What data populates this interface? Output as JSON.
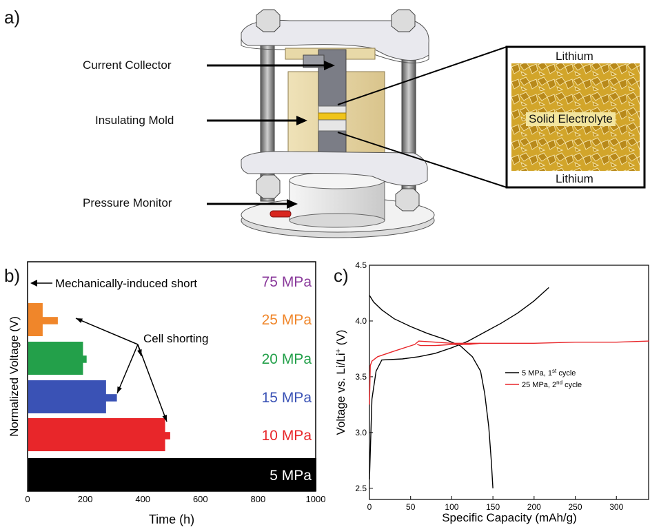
{
  "panel_labels": {
    "a": "a)",
    "b": "b)",
    "c": "c)"
  },
  "panel_a": {
    "callouts": {
      "current_collector": "Current Collector",
      "insulating_mold": "Insulating Mold",
      "pressure_monitor": "Pressure Monitor"
    },
    "inset": {
      "top_label": "Lithium",
      "middle_label": "Solid Electrolyte",
      "bottom_label": "Lithium"
    }
  },
  "panel_b": {
    "annotations": {
      "short": "Mechanically-induced short",
      "shorting": "Cell shorting"
    }
  },
  "colors": {
    "p5": "#000000",
    "p10": "#e8262a",
    "p15": "#3a52b5",
    "p20": "#23a04a",
    "p25": "#f0862a",
    "p75": "#8a3a9b"
  },
  "chart_data": [
    {
      "type": "bar",
      "xlabel": "Time (h)",
      "ylabel": "Normalized Voltage (V)",
      "xlim": [
        0,
        1000
      ],
      "xticks": [
        0,
        200,
        400,
        600,
        800,
        1000
      ],
      "series": [
        {
          "name": "75 MPa",
          "short_time": 0,
          "color": "#8a3a9b"
        },
        {
          "name": "25 MPa",
          "short_time": 50,
          "spike_to": 105,
          "color": "#f0862a"
        },
        {
          "name": "20 MPa",
          "short_time": 190,
          "spike_to": 205,
          "color": "#23a04a"
        },
        {
          "name": "15 MPa",
          "short_time": 270,
          "spike_to": 310,
          "color": "#3a52b5"
        },
        {
          "name": "10 MPa",
          "short_time": 475,
          "spike_to": 495,
          "color": "#e8262a"
        },
        {
          "name": "5 MPa",
          "short_time": 1000,
          "color": "#000000"
        }
      ]
    },
    {
      "type": "line",
      "xlabel": "Specific Capacity (mAh/g)",
      "ylabel_main": "Voltage vs. Li/Li",
      "ylabel_sup": "+",
      "ylabel_end": " (V)",
      "xlim": [
        0,
        340
      ],
      "ylim": [
        2.4,
        4.5
      ],
      "xticks": [
        0,
        50,
        100,
        150,
        200,
        250,
        300
      ],
      "yticks": [
        2.5,
        3.0,
        3.5,
        4.0,
        4.5
      ],
      "yticklabels": [
        "2.5",
        "3.0",
        "3.5",
        "4.0",
        "4.5"
      ],
      "legend": [
        {
          "text": "5 MPa, 1",
          "sup": "st",
          "tail": " cycle",
          "color": "#000000"
        },
        {
          "text": "25 MPa, 2",
          "sup": "nd",
          "tail": " cycle",
          "color": "#e8262a"
        }
      ],
      "series": [
        {
          "name": "5 MPa charge",
          "color": "#000000",
          "x": [
            0,
            3,
            8,
            15,
            40,
            60,
            80,
            100,
            120,
            140,
            160,
            180,
            200,
            218
          ],
          "y": [
            2.58,
            3.3,
            3.55,
            3.65,
            3.66,
            3.68,
            3.71,
            3.76,
            3.82,
            3.9,
            3.98,
            4.07,
            4.18,
            4.3
          ]
        },
        {
          "name": "5 MPa discharge",
          "color": "#000000",
          "x": [
            0,
            5,
            15,
            30,
            50,
            70,
            90,
            110,
            125,
            135,
            140,
            145,
            148,
            150
          ],
          "y": [
            4.23,
            4.17,
            4.1,
            4.02,
            3.95,
            3.89,
            3.84,
            3.78,
            3.68,
            3.55,
            3.35,
            3.05,
            2.75,
            2.5
          ]
        },
        {
          "name": "25 MPa charge",
          "color": "#e8262a",
          "x": [
            0,
            1,
            3,
            10,
            30,
            55,
            60,
            100,
            150,
            200,
            250,
            300,
            340
          ],
          "y": [
            3.25,
            3.6,
            3.64,
            3.68,
            3.73,
            3.79,
            3.82,
            3.8,
            3.8,
            3.8,
            3.81,
            3.81,
            3.82
          ]
        },
        {
          "name": "25 MPa discharge",
          "color": "#e8262a",
          "x": [
            58,
            62,
            80,
            100,
            120,
            135
          ],
          "y": [
            3.79,
            3.78,
            3.78,
            3.79,
            3.79,
            3.8
          ]
        }
      ]
    }
  ]
}
